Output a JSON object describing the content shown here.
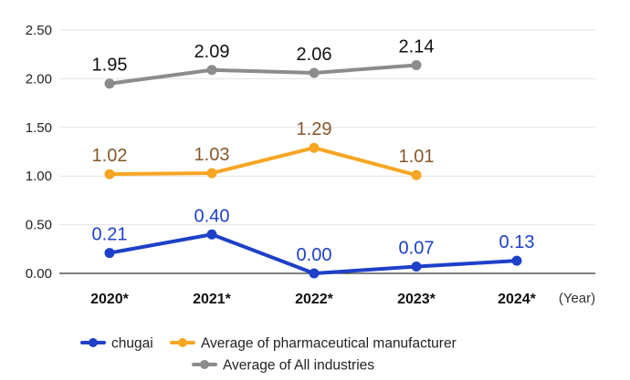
{
  "chart_data": {
    "type": "line",
    "categories": [
      "2020*",
      "2021*",
      "2022*",
      "2023*",
      "2024*"
    ],
    "xunit": "(Year)",
    "ylim": [
      0,
      2.5
    ],
    "yticks": [
      "0.00",
      "0.50",
      "1.00",
      "1.50",
      "2.00",
      "2.50"
    ],
    "grid": true,
    "legend_position": "bottom",
    "series": [
      {
        "key": "chugai",
        "name": "chugai",
        "color": "#1e40c8",
        "label_color": "#1e40c8",
        "values": [
          0.21,
          0.4,
          0.0,
          0.07,
          0.13
        ],
        "labels": [
          "0.21",
          "0.40",
          "0.00",
          "0.07",
          "0.13"
        ]
      },
      {
        "key": "pharma",
        "name": "Average of pharmaceutical manufacturer",
        "color": "#f6a623",
        "label_color": "#86572a",
        "values": [
          1.02,
          1.03,
          1.29,
          1.01,
          null
        ],
        "labels": [
          "1.02",
          "1.03",
          "1.29",
          "1.01",
          null
        ]
      },
      {
        "key": "all",
        "name": "Average of All industries",
        "color": "#8c8c8c",
        "label_color": "#111111",
        "values": [
          1.95,
          2.09,
          2.06,
          2.14,
          null
        ],
        "labels": [
          "1.95",
          "2.09",
          "2.06",
          "2.14",
          null
        ]
      }
    ]
  }
}
